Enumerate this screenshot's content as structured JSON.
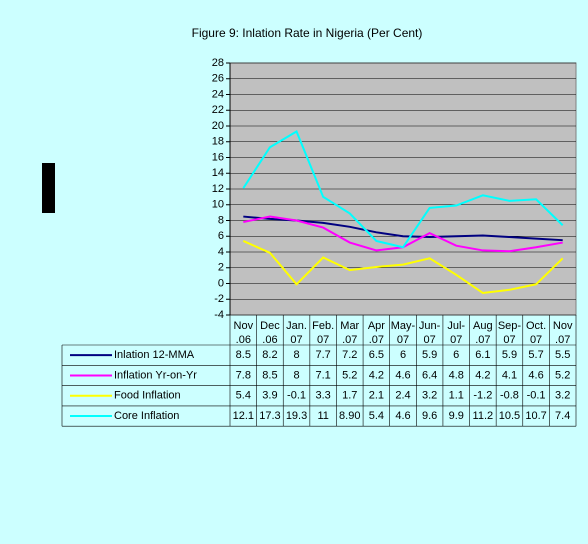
{
  "chart_data": {
    "type": "line",
    "title": "Figure 9: Inlation Rate in Nigeria (Per Cent)",
    "categories": [
      "Nov .06",
      "Dec .06",
      "Jan. 07",
      "Feb. 07",
      "Mar .07",
      "Apr .07",
      "May- 07",
      "Jun- 07",
      "Jul- 07",
      "Aug .07",
      "Sep- 07",
      "Oct. 07",
      "Nov .07"
    ],
    "series": [
      {
        "name": "Inlation 12-MMA",
        "color": "#000080",
        "values": [
          8.5,
          8.2,
          8,
          7.7,
          7.2,
          6.5,
          6,
          5.9,
          6,
          6.1,
          5.9,
          5.7,
          5.5
        ]
      },
      {
        "name": "Inflation Yr-on-Yr",
        "color": "#ff00ff",
        "values": [
          7.8,
          8.5,
          8,
          7.1,
          5.2,
          4.2,
          4.6,
          6.4,
          4.8,
          4.2,
          4.1,
          4.6,
          5.2
        ]
      },
      {
        "name": "Food Inflation",
        "color": "#ffff00",
        "values": [
          5.4,
          3.9,
          -0.1,
          3.3,
          1.7,
          2.1,
          2.4,
          3.2,
          1.1,
          -1.2,
          -0.8,
          -0.1,
          3.2
        ]
      },
      {
        "name": "Core Inflation",
        "color": "#00ffff",
        "values": [
          12.1,
          17.3,
          19.3,
          11,
          8.9,
          5.4,
          4.6,
          9.6,
          9.9,
          11.2,
          10.5,
          10.7,
          7.4
        ],
        "value_labels": [
          "12.1",
          "17.3",
          "19.3",
          "11",
          "8.90",
          "5.4",
          "4.6",
          "9.6",
          "9.9",
          "11.2",
          "10.5",
          "10.7",
          "7.4"
        ]
      }
    ],
    "ylim": [
      -4,
      28
    ],
    "yticks": [
      -4,
      -2,
      0,
      2,
      4,
      6,
      8,
      10,
      12,
      14,
      16,
      18,
      20,
      22,
      24,
      26,
      28
    ],
    "grid": true,
    "plot_background": "#c0c0c0"
  }
}
